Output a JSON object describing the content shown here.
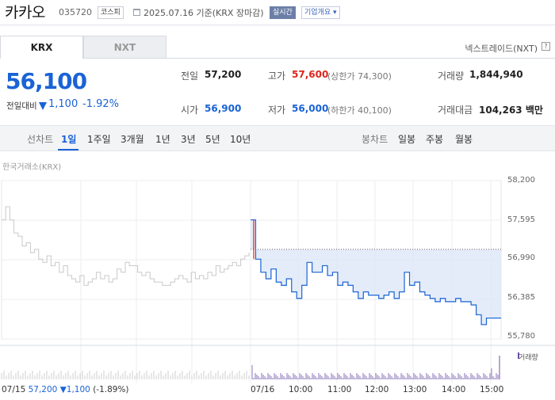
{
  "header": {
    "name": "카카오",
    "code": "035720",
    "market_badge": "코스피",
    "date_text": "2025.07.16 기준(KRX 장마감)",
    "realtime_badge": "실시간",
    "company_info_badge": "기업개요 ▾"
  },
  "tabs": [
    {
      "label": "KRX",
      "selected": true
    },
    {
      "label": "NXT",
      "selected": false
    }
  ],
  "nexttrade_label": "넥스트레이드(NXT)",
  "help_icon_text": "?",
  "quote": {
    "price": "56,100",
    "change_label": "전일대비",
    "change": "1,100",
    "change_pct": "-1.92%",
    "direction": "down",
    "color_down": "#1a63d6",
    "color_up": "#e0251b"
  },
  "stats": {
    "prev_close": {
      "label": "전일",
      "value": "57,200"
    },
    "high": {
      "label": "고가",
      "value": "57,600",
      "note": "(상한가 74,300)"
    },
    "volume": {
      "label": "거래량",
      "value": "1,844,940"
    },
    "open": {
      "label": "시가",
      "value": "56,900"
    },
    "low": {
      "label": "저가",
      "value": "56,000",
      "note": "(하한가 40,100)"
    },
    "trade_value": {
      "label": "거래대금",
      "value": "104,263 백만"
    }
  },
  "period_bar": {
    "line_label": "선차트",
    "periods": [
      "1일",
      "1주일",
      "3개월",
      "1년",
      "3년",
      "5년",
      "10년"
    ],
    "selected_period": "1일",
    "candle_label": "봉차트",
    "candles": [
      "일봉",
      "주봉",
      "월봉"
    ]
  },
  "source_label": "한국거래소(KRX)",
  "chart_data": {
    "type": "line",
    "y_ticks": [
      "58,200",
      "57,595",
      "56,990",
      "56,385",
      "55,780"
    ],
    "ylim": [
      55780,
      58200
    ],
    "x_ticks": [
      "07/16",
      "10:00",
      "11:00",
      "12:00",
      "13:00",
      "14:00",
      "15:00"
    ],
    "prev_day_label": "07/15",
    "prev_day_close": "57,200",
    "prev_day_change": "1,100",
    "prev_day_change_pct": "(-1.89%)",
    "reference_price": 57200,
    "volume_legend": "거래량",
    "series": [
      {
        "period": "prev_day",
        "values": [
          57600,
          57800,
          57600,
          57400,
          57350,
          57200,
          57250,
          57100,
          57150,
          57000,
          56950,
          57050,
          56900,
          56950,
          56800,
          56900,
          56750,
          56700,
          56650,
          56750,
          56600,
          56650,
          56700,
          56800,
          56700,
          56750,
          56650,
          56700,
          56850,
          56800,
          56950,
          56900,
          56900,
          56800,
          56750,
          56800,
          56700,
          56650,
          56650,
          56600,
          56600,
          56650,
          56700,
          56750,
          56700,
          56650,
          56800,
          56700,
          56750,
          56700,
          56800,
          56750,
          56900,
          56800,
          56850,
          56900,
          56950,
          56900,
          57000,
          57050,
          57100
        ]
      },
      {
        "period": "today",
        "values": [
          57600,
          57000,
          56800,
          56700,
          56850,
          56650,
          56600,
          56700,
          56500,
          56400,
          56600,
          56950,
          56800,
          56800,
          56900,
          56750,
          56800,
          56600,
          56650,
          56600,
          56500,
          56400,
          56500,
          56450,
          56450,
          56400,
          56450,
          56500,
          56400,
          56500,
          56800,
          56600,
          56650,
          56500,
          56450,
          56400,
          56350,
          56400,
          56350,
          56350,
          56400,
          56350,
          56350,
          56300,
          56150,
          56000,
          56100,
          56100
        ]
      }
    ]
  }
}
